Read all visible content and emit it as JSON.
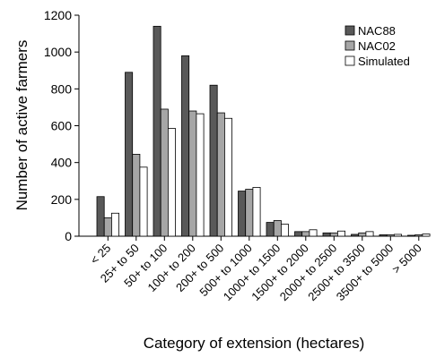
{
  "chart_data": {
    "type": "bar",
    "title": "",
    "xlabel": "Category of extension (hectares)",
    "ylabel": "Number of active farmers",
    "ylim": [
      0,
      1200
    ],
    "yticks": [
      0,
      200,
      400,
      600,
      800,
      1000,
      1200
    ],
    "grid": false,
    "legend_position": "top-right",
    "categories": [
      "< 25",
      "25+ to 50",
      "50+ to 100",
      "100+ to 200",
      "200+ to 500",
      "500+ to 1000",
      "1000+ to 1500",
      "1500+ to 2000",
      "2000+ to 2500",
      "2500+ to 3500",
      "3500+ to 5000",
      "> 5000"
    ],
    "series": [
      {
        "name": "NAC88",
        "color": "#595959",
        "values": [
          215,
          890,
          1140,
          980,
          820,
          245,
          75,
          25,
          18,
          10,
          8,
          5
        ]
      },
      {
        "name": "NAC02",
        "color": "#a6a6a6",
        "values": [
          100,
          445,
          690,
          680,
          670,
          255,
          85,
          25,
          18,
          18,
          8,
          8
        ]
      },
      {
        "name": "Simulated",
        "color": "#ffffff",
        "values": [
          125,
          375,
          585,
          665,
          640,
          265,
          65,
          35,
          28,
          25,
          10,
          12
        ]
      }
    ]
  }
}
